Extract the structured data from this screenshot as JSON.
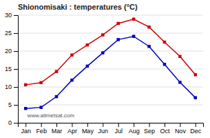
{
  "chart_data": {
    "type": "line",
    "title": "Shionomisaki : temperatures (°C)",
    "categories": [
      "Jan",
      "Feb",
      "Mar",
      "Apr",
      "May",
      "Jun",
      "Jul",
      "Aug",
      "Sep",
      "Oct",
      "Nov",
      "Dec"
    ],
    "series": [
      {
        "color": "#cc0000",
        "values": [
          10.6,
          11.2,
          14.3,
          18.9,
          21.7,
          24.5,
          27.7,
          28.9,
          26.7,
          22.5,
          18.5,
          13.4
        ]
      },
      {
        "color": "#0000bb",
        "values": [
          4.0,
          4.3,
          7.3,
          11.9,
          15.8,
          19.5,
          23.2,
          24.1,
          21.3,
          16.3,
          11.3,
          7.0
        ]
      }
    ],
    "marker": "square",
    "ylim": [
      0,
      30
    ],
    "yticks": [
      0,
      5,
      10,
      15,
      20,
      25,
      30
    ],
    "grid": true,
    "annotation": "www.allmetsat.com"
  }
}
